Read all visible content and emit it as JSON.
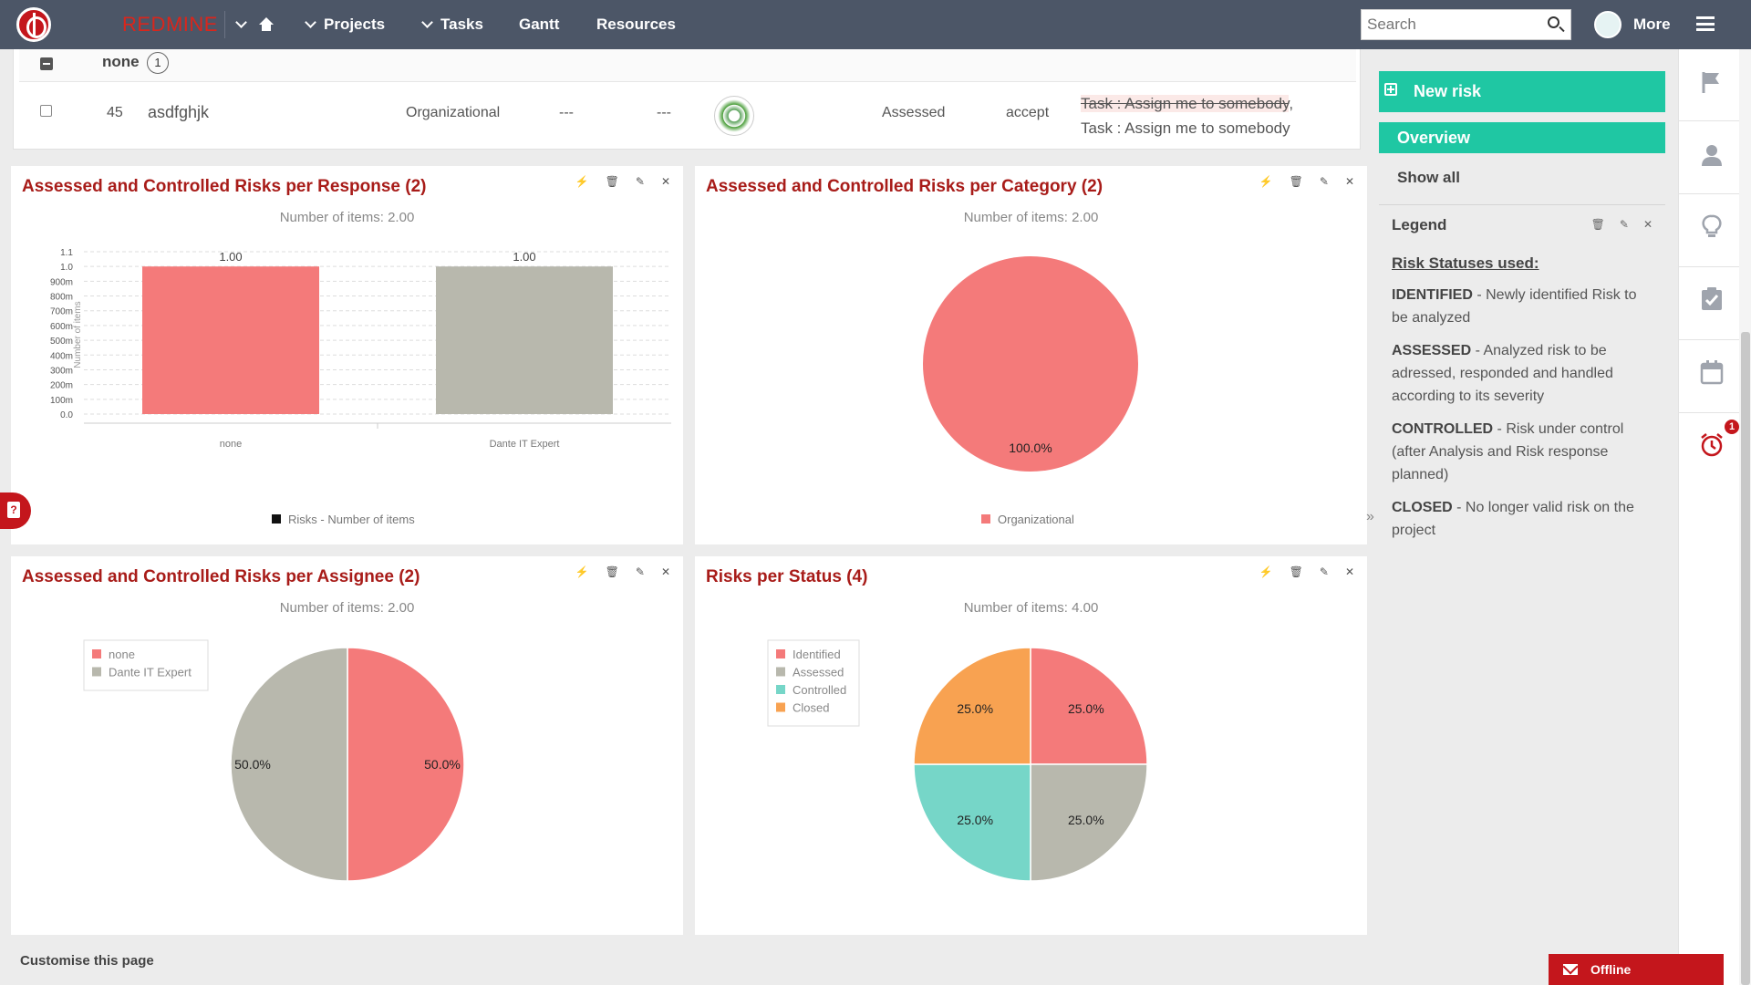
{
  "topbar": {
    "brand": "REDMINE",
    "nav": [
      "Projects",
      "Tasks",
      "Gantt",
      "Resources"
    ],
    "search_placeholder": "Search",
    "more_label": "More"
  },
  "table": {
    "group_label": "none",
    "group_count": "1",
    "row": {
      "id": "45",
      "name": "asdfghjk",
      "category": "Organizational",
      "col4": "---",
      "col5": "---",
      "status": "Assessed",
      "response": "accept",
      "task_struck": "Task : Assign me to somebody",
      "task_separator": ",",
      "task_active": "Task : Assign me to somebody"
    }
  },
  "cards": {
    "response": {
      "title": "Assessed and Controlled Risks per Response (2)",
      "subtitle": "Number of items: 2.00"
    },
    "category": {
      "title": "Assessed and Controlled Risks per Category (2)",
      "subtitle": "Number of items: 2.00"
    },
    "assignee": {
      "title": "Assessed and Controlled Risks per Assignee (2)",
      "subtitle": "Number of items: 2.00"
    },
    "status": {
      "title": "Risks per Status (4)",
      "subtitle": "Number of items: 4.00"
    }
  },
  "chart_data": [
    {
      "type": "bar",
      "categories": [
        "none",
        "Dante IT Expert"
      ],
      "series": [
        {
          "name": "Risks - Number of items",
          "values": [
            1.0,
            1.0
          ]
        }
      ],
      "data_labels": [
        "1.00",
        "1.00"
      ],
      "ylabel": "Number of items",
      "ylim": [
        0,
        1.1
      ],
      "yticks": [
        "0.0",
        "100m",
        "200m",
        "300m",
        "400m",
        "500m",
        "600m",
        "700m",
        "800m",
        "900m",
        "1.0",
        "1.1"
      ],
      "colors": [
        "#f47a7a",
        "#b8b8ad"
      ],
      "legend_position": "bottom",
      "grid": true
    },
    {
      "type": "pie",
      "categories": [
        "Organizational"
      ],
      "values": [
        100.0
      ],
      "labels": [
        "100.0%"
      ],
      "colors": [
        "#f47a7a"
      ],
      "legend_position": "bottom"
    },
    {
      "type": "pie",
      "categories": [
        "none",
        "Dante IT Expert"
      ],
      "values": [
        50.0,
        50.0
      ],
      "labels": [
        "50.0%",
        "50.0%"
      ],
      "colors": [
        "#f47a7a",
        "#b8b8ad"
      ],
      "legend_position": "top-left"
    },
    {
      "type": "pie",
      "categories": [
        "Identified",
        "Assessed",
        "Controlled",
        "Closed"
      ],
      "values": [
        25.0,
        25.0,
        25.0,
        25.0
      ],
      "labels": [
        "25.0%",
        "25.0%",
        "25.0%",
        "25.0%"
      ],
      "colors": [
        "#f47a7a",
        "#b8b8ad",
        "#76d6c8",
        "#f8a251"
      ],
      "legend_position": "top-left"
    }
  ],
  "sidebar": {
    "new_risk": "New risk",
    "overview": "Overview",
    "show_all": "Show all",
    "legend_title": "Legend",
    "statuses_heading": "Risk Statuses used:",
    "statuses": [
      {
        "name": "IDENTIFIED",
        "desc": " - Newly identified Risk to be analyzed"
      },
      {
        "name": "ASSESSED",
        "desc": " - Analyzed risk to be adressed, responded and handled according to its severity"
      },
      {
        "name": "CONTROLLED",
        "desc": " - Risk under control (after Analysis and Risk response planned)"
      },
      {
        "name": "CLOSED",
        "desc": " - No longer valid risk on the project"
      }
    ]
  },
  "rail": {
    "alarm_badge": "1"
  },
  "footer": {
    "customise": "Customise this page",
    "offline": "Offline"
  },
  "colors": {
    "accent": "#1fc7a3",
    "title_red": "#a81c19",
    "nav_bg": "#4c5667"
  }
}
